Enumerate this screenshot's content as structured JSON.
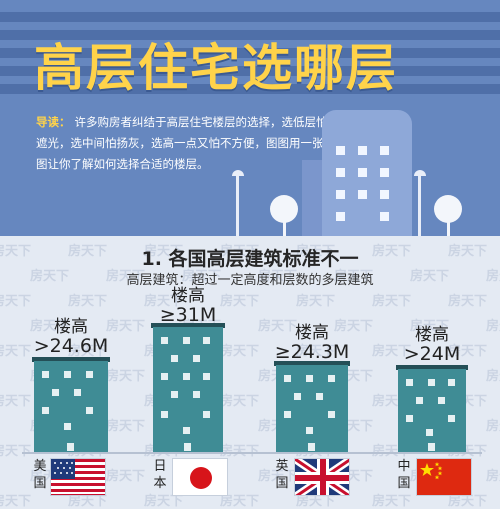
{
  "header": {
    "title": "高层住宅选哪层",
    "intro_lead": "导读：",
    "intro_text": "许多购房者纠结于高层住宅楼层的选择，选低层怕遮光，选中间怕扬灰，选高一点又怕不方便，图图用一张图让你了解如何选择合适的楼层。"
  },
  "section": {
    "title": "1. 各国高层建筑标准不一",
    "subtitle": "高层建筑：超过一定高度和层数的多层建筑"
  },
  "watermark_text": "房天下",
  "countries": [
    {
      "name": "美国",
      "name_top": "美",
      "name_bottom": "国",
      "label": "楼高",
      "value": ">24.6M",
      "height_m": 24.6,
      "flag": "usa-flag-icon"
    },
    {
      "name": "日本",
      "name_top": "日",
      "name_bottom": "本",
      "label": "楼高",
      "value": "≥31M",
      "height_m": 31,
      "flag": "japan-flag-icon"
    },
    {
      "name": "英国",
      "name_top": "英",
      "name_bottom": "国",
      "label": "楼高",
      "value": "≥24.3M",
      "height_m": 24.3,
      "flag": "uk-flag-icon"
    },
    {
      "name": "中国",
      "name_top": "中",
      "name_bottom": "国",
      "label": "楼高",
      "value": ">24M",
      "height_m": 24,
      "flag": "china-flag-icon"
    }
  ],
  "colors": {
    "header_bg": "#6687bf",
    "title": "#ffd34a",
    "building": "#3f8c95",
    "roof": "#244f57"
  }
}
